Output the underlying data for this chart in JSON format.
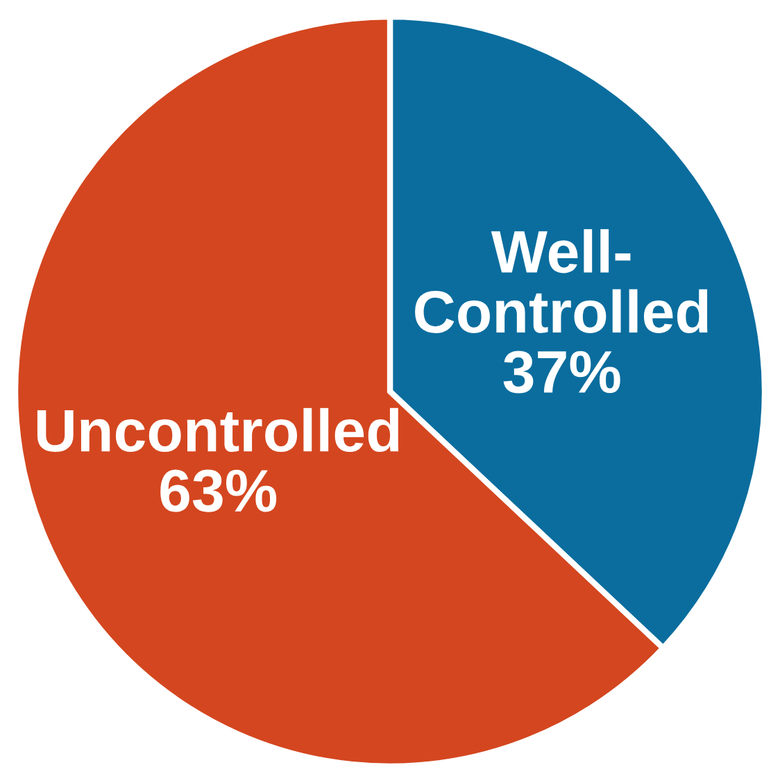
{
  "chart_data": {
    "type": "pie",
    "categories": [
      "Well-Controlled",
      "Uncontrolled"
    ],
    "values": [
      37,
      63
    ],
    "colors": [
      "#0a6d9e",
      "#d4461f"
    ],
    "value_labels": [
      "37%",
      "63%"
    ]
  }
}
